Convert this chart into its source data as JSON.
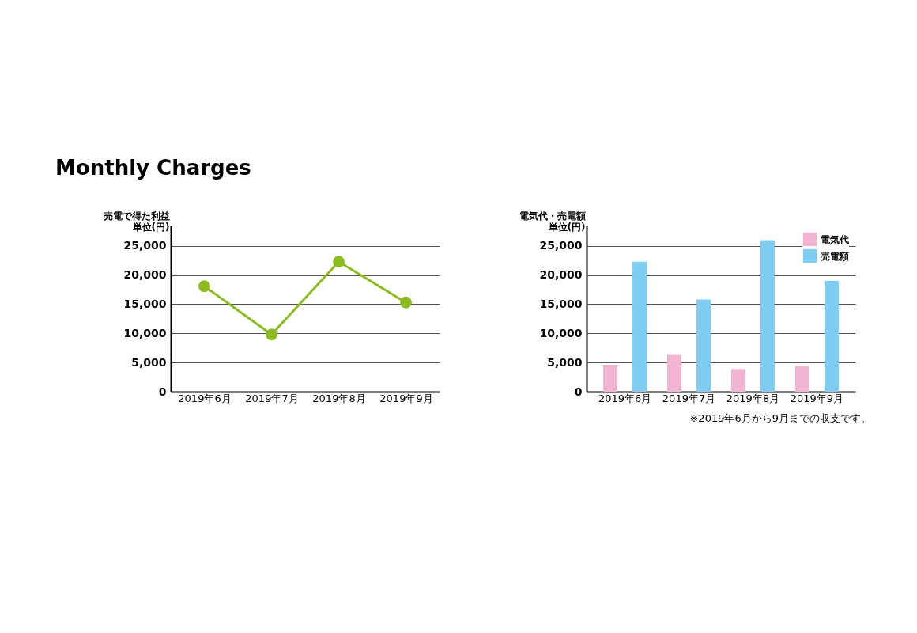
{
  "chart_data": [
    {
      "type": "line",
      "title": "Monthly Charges",
      "ylabel": [
        "売電で得た利益",
        "単位(円)"
      ],
      "categories": [
        "2019年6月",
        "2019年7月",
        "2019年8月",
        "2019年9月"
      ],
      "series": [
        {
          "color": "#8cbb1f",
          "values": [
            18100,
            9800,
            22300,
            15300
          ]
        }
      ],
      "ylim": [
        0,
        28500
      ],
      "yticks": [
        0,
        {
          "value": 5000,
          "label": "5,000"
        },
        {
          "value": 10000,
          "label": "10,000"
        },
        {
          "value": 15000,
          "label": "15,000"
        },
        {
          "value": 20000,
          "label": "20,000"
        },
        {
          "value": 25000,
          "label": "25,000"
        }
      ],
      "grid": "y",
      "marker": "circle",
      "line_style": "solid"
    },
    {
      "type": "bar",
      "ylabel": [
        "電気代・売電額",
        "単位(円)"
      ],
      "categories": [
        "2019年6月",
        "2019年7月",
        "2019年8月",
        "2019年9月"
      ],
      "series": [
        {
          "name": "電気代",
          "color": "#f2b4d0",
          "values": [
            4600,
            6300,
            3900,
            4400
          ]
        },
        {
          "name": "売電額",
          "color": "#7fcdf3",
          "values": [
            22300,
            15800,
            26000,
            19000
          ]
        }
      ],
      "ylim": [
        0,
        28500
      ],
      "yticks": [
        0,
        {
          "value": 5000,
          "label": "5,000"
        },
        {
          "value": 10000,
          "label": "10,000"
        },
        {
          "value": 15000,
          "label": "15,000"
        },
        {
          "value": 20000,
          "label": "20,000"
        },
        {
          "value": 25000,
          "label": "25,000"
        }
      ],
      "grid": "y",
      "legend": "top right",
      "annotations": [
        "※2019年6月から9月までの収支です。"
      ]
    }
  ]
}
